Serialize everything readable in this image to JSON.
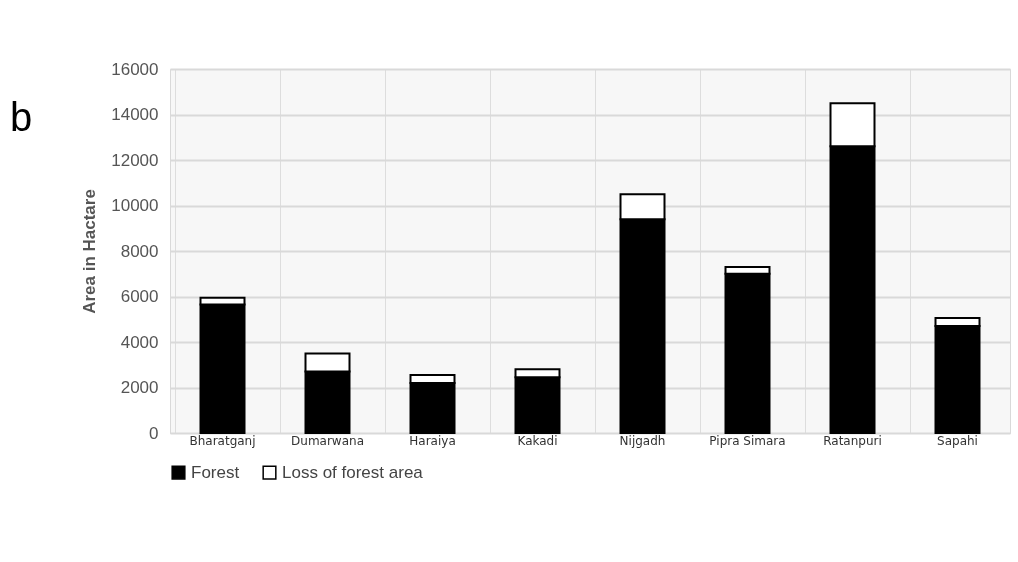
{
  "chart_data": {
    "type": "bar",
    "stacked": true,
    "ylabel": "Area in Hactare",
    "annotations": [
      "b"
    ],
    "categories": [
      "Bharatganj",
      "Dumarwana",
      "Haraiya",
      "Kakadi",
      "Nijgadh",
      "Pipra Simara",
      "Ratanpuri",
      "Sapahi"
    ],
    "series": [
      {
        "name": "Forest",
        "color": "#000000",
        "values": [
          5650,
          2700,
          2200,
          2450,
          9400,
          7000,
          12600,
          4700
        ]
      },
      {
        "name": "Loss of forest area",
        "color": "#ffffff",
        "values": [
          300,
          800,
          350,
          350,
          1100,
          300,
          1900,
          350
        ]
      }
    ],
    "ylim": [
      0,
      16000
    ],
    "yticks": [
      0,
      2000,
      4000,
      6000,
      8000,
      10000,
      12000,
      14000,
      16000
    ],
    "grid": true,
    "legend": "bottom"
  }
}
